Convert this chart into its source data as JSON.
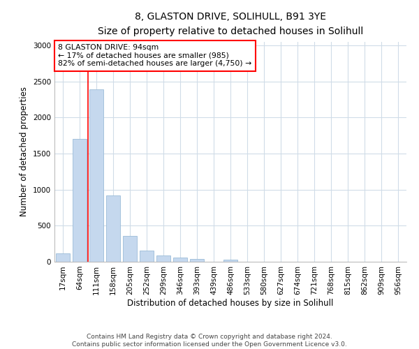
{
  "title1": "8, GLASTON DRIVE, SOLIHULL, B91 3YE",
  "title2": "Size of property relative to detached houses in Solihull",
  "xlabel": "Distribution of detached houses by size in Solihull",
  "ylabel": "Number of detached properties",
  "categories": [
    "17sqm",
    "64sqm",
    "111sqm",
    "158sqm",
    "205sqm",
    "252sqm",
    "299sqm",
    "346sqm",
    "393sqm",
    "439sqm",
    "486sqm",
    "533sqm",
    "580sqm",
    "627sqm",
    "674sqm",
    "721sqm",
    "768sqm",
    "815sqm",
    "862sqm",
    "909sqm",
    "956sqm"
  ],
  "values": [
    120,
    1700,
    2390,
    920,
    360,
    155,
    85,
    60,
    40,
    0,
    30,
    0,
    0,
    0,
    0,
    0,
    0,
    0,
    0,
    0,
    0
  ],
  "bar_color": "#c5d8ee",
  "bar_edge_color": "#9bbcd8",
  "annotation_text_line1": "8 GLASTON DRIVE: 94sqm",
  "annotation_text_line2": "← 17% of detached houses are smaller (985)",
  "annotation_text_line3": "82% of semi-detached houses are larger (4,750) →",
  "annotation_box_color": "white",
  "annotation_box_edge_color": "red",
  "vline_color": "red",
  "ylim": [
    0,
    3050
  ],
  "yticks": [
    0,
    500,
    1000,
    1500,
    2000,
    2500,
    3000
  ],
  "footnote1": "Contains HM Land Registry data © Crown copyright and database right 2024.",
  "footnote2": "Contains public sector information licensed under the Open Government Licence v3.0.",
  "background_color": "#ffffff",
  "plot_background": "#ffffff",
  "grid_color": "#d0dce8",
  "title1_fontsize": 10,
  "title2_fontsize": 9,
  "annotation_fontsize": 7.8,
  "axis_label_fontsize": 8.5,
  "tick_fontsize": 7.5,
  "footnote_fontsize": 6.5
}
